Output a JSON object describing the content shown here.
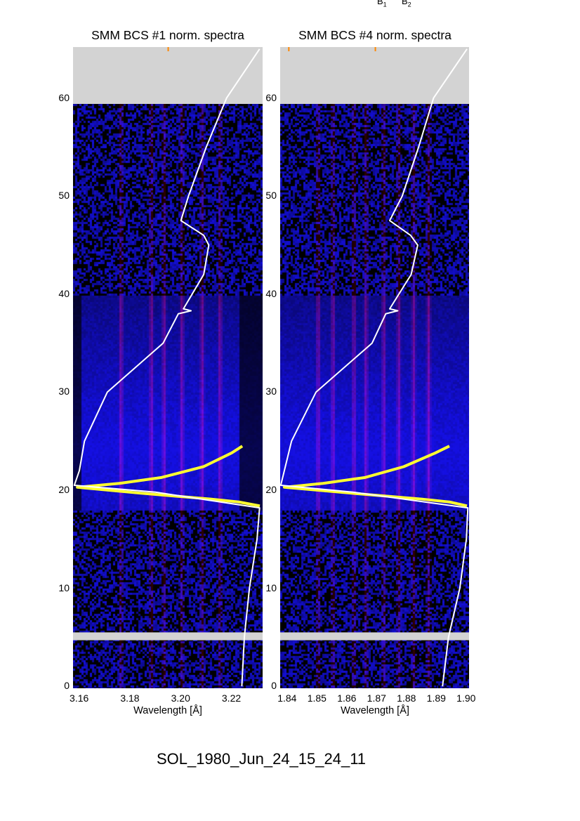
{
  "header_labels": [
    {
      "main": "B",
      "sub": "1"
    },
    {
      "main": "B",
      "sub": "2"
    }
  ],
  "suptitle": "SOL_1980_Jun_24_15_24_11",
  "colors": {
    "background_low": "#000000",
    "heat_mid": "#1a10d8",
    "heat_line": "#7a1a70",
    "light_curve": "#ffffff",
    "spectrum": "#ffff30",
    "no_data": "#d3d3d3"
  },
  "chart_data": [
    {
      "type": "heatmap",
      "title": "SMM BCS #1 norm. spectra",
      "xlabel": "Wavelength [Å]",
      "ylabel": "",
      "xlim": [
        3.1575,
        3.2322
      ],
      "ylim": [
        -0.2,
        65.2
      ],
      "xticks": [
        3.16,
        3.18,
        3.2,
        3.22
      ],
      "xtick_labels": [
        "3.16",
        "3.18",
        "3.20",
        "3.22"
      ],
      "yticks": [
        0,
        10,
        20,
        30,
        40,
        50,
        60
      ],
      "ytick_labels": [
        "0",
        "10",
        "20",
        "30",
        "40",
        "50",
        "60"
      ],
      "no_data_bands": [
        [
          59.4,
          65.2
        ],
        [
          4.7,
          5.5
        ]
      ],
      "line_positions": [
        3.176,
        3.188,
        3.193,
        3.2,
        3.208,
        3.215
      ],
      "top_markers": [
        3.195
      ],
      "light_curve": [
        [
          3.231,
          65
        ],
        [
          3.218,
          60
        ],
        [
          3.21,
          55
        ],
        [
          3.203,
          50
        ],
        [
          3.2,
          47.5
        ],
        [
          3.209,
          46
        ],
        [
          3.211,
          45
        ],
        [
          3.209,
          42
        ],
        [
          3.201,
          38.5
        ],
        [
          3.204,
          38.3
        ],
        [
          3.199,
          38
        ],
        [
          3.193,
          35
        ],
        [
          3.171,
          30
        ],
        [
          3.162,
          25
        ],
        [
          3.16,
          22
        ],
        [
          3.158,
          20.5
        ],
        [
          3.19,
          19.8
        ],
        [
          3.231,
          18.2
        ],
        [
          3.23,
          15
        ],
        [
          3.227,
          10
        ],
        [
          3.225,
          5
        ],
        [
          3.224,
          0
        ]
      ],
      "spectrum_trace": [
        [
          3.2242,
          24.5
        ],
        [
          3.22,
          23.8
        ],
        [
          3.2089,
          22.4
        ],
        [
          3.1924,
          21.3
        ],
        [
          3.1758,
          20.7
        ],
        [
          3.1592,
          20.3
        ],
        [
          3.184,
          19.7
        ],
        [
          3.2117,
          19.1
        ],
        [
          3.2228,
          18.8
        ],
        [
          3.2311,
          18.4
        ]
      ]
    },
    {
      "type": "heatmap",
      "title": "SMM BCS #4 norm. spectra",
      "xlabel": "Wavelength [Å]",
      "ylabel": "",
      "xlim": [
        1.8376,
        1.9009
      ],
      "ylim": [
        -0.2,
        65.2
      ],
      "xticks": [
        1.84,
        1.85,
        1.86,
        1.87,
        1.88,
        1.89,
        1.9
      ],
      "xtick_labels": [
        "1.84",
        "1.85",
        "1.86",
        "1.87",
        "1.88",
        "1.89",
        "1.90"
      ],
      "yticks": [
        0,
        10,
        20,
        30,
        40,
        50,
        60
      ],
      "ytick_labels": [
        "0",
        "10",
        "20",
        "30",
        "40",
        "50",
        "60"
      ],
      "no_data_bands": [
        [
          59.4,
          65.2
        ],
        [
          4.7,
          5.5
        ]
      ],
      "line_positions": [
        1.85,
        1.855,
        1.862,
        1.866,
        1.872,
        1.877,
        1.882,
        1.887
      ],
      "top_markers": [
        1.8405,
        1.8695
      ],
      "light_curve": [
        [
          1.9002,
          65
        ],
        [
          1.889,
          60
        ],
        [
          1.884,
          55
        ],
        [
          1.8785,
          50
        ],
        [
          1.8743,
          47.5
        ],
        [
          1.8813,
          46
        ],
        [
          1.8837,
          45
        ],
        [
          1.8815,
          42
        ],
        [
          1.8743,
          38.5
        ],
        [
          1.877,
          38.3
        ],
        [
          1.873,
          38
        ],
        [
          1.8684,
          35
        ],
        [
          1.8496,
          30
        ],
        [
          1.8414,
          25
        ],
        [
          1.839,
          22
        ],
        [
          1.8378,
          20.5
        ],
        [
          1.862,
          19.8
        ],
        [
          1.9005,
          18.2
        ],
        [
          1.9,
          15
        ],
        [
          1.8978,
          10
        ],
        [
          1.894,
          5
        ],
        [
          1.892,
          0
        ]
      ],
      "spectrum_trace": [
        [
          1.8943,
          24.5
        ],
        [
          1.8896,
          23.8
        ],
        [
          1.879,
          22.4
        ],
        [
          1.8661,
          21.3
        ],
        [
          1.852,
          20.7
        ],
        [
          1.839,
          20.3
        ],
        [
          1.8614,
          19.7
        ],
        [
          1.8849,
          19.1
        ],
        [
          1.8943,
          18.8
        ],
        [
          1.9002,
          18.4
        ]
      ]
    }
  ]
}
